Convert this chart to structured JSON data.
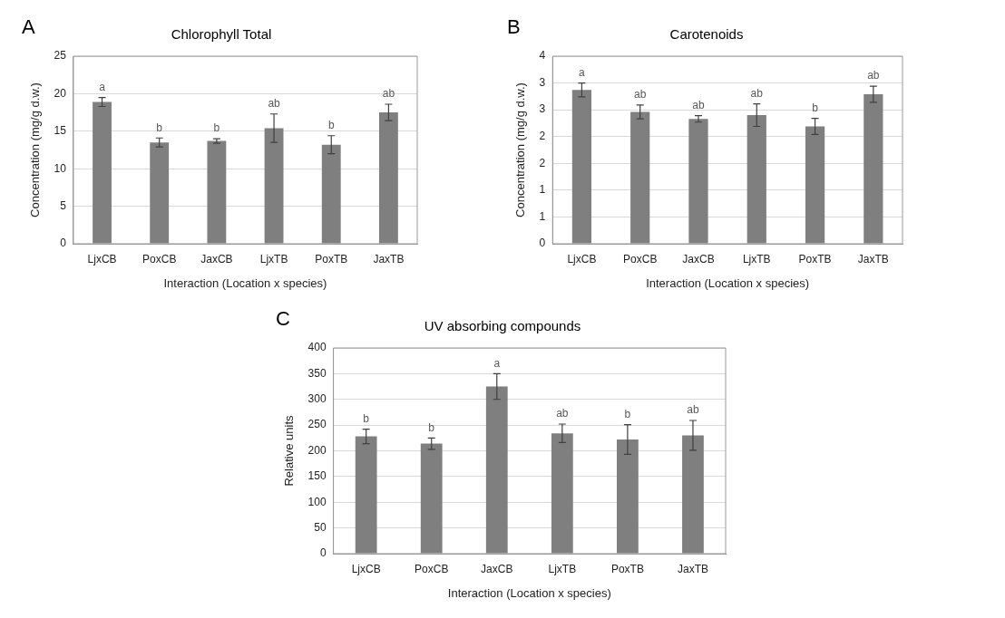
{
  "chart_data": [
    {
      "type": "bar",
      "title": "Chlorophyll Total",
      "xlabel": "Interaction (Location x species)",
      "ylabel": "Concentration (mg/g d.w.)",
      "categories": [
        "LjxCB",
        "PoxCB",
        "JaxCB",
        "LjxTB",
        "PoxTB",
        "JaxTB"
      ],
      "values": [
        18.9,
        13.5,
        13.7,
        15.4,
        13.2,
        17.5
      ],
      "errors": [
        0.6,
        0.6,
        0.3,
        1.9,
        1.2,
        1.1
      ],
      "color": "#7f7f7f",
      "ylim": [
        0,
        25
      ],
      "yticks": [
        0,
        5,
        10,
        15,
        20,
        25
      ],
      "grid": "y",
      "annotations": [
        "A",
        {
          "text": "a",
          "x": "LjxCB",
          "y": 19.5
        },
        {
          "text": "b",
          "x": "PoxCB",
          "y": 14.1
        },
        {
          "text": "b",
          "x": "JaxCB",
          "y": 14.0
        },
        {
          "text": "ab",
          "x": "LjxTB",
          "y": 17.3
        },
        {
          "text": "b",
          "x": "PoxTB",
          "y": 14.4
        },
        {
          "text": "ab",
          "x": "JaxTB",
          "y": 18.6
        }
      ]
    },
    {
      "type": "bar",
      "title": "Carotenoids",
      "xlabel": "Interaction (Location x species)",
      "ylabel": "Concentration (mg/g d.w.)",
      "categories": [
        "LjxCB",
        "PoxCB",
        "JaxCB",
        "LjxTB",
        "PoxTB",
        "JaxTB"
      ],
      "values": [
        2.87,
        2.46,
        2.33,
        2.4,
        2.19,
        2.79
      ],
      "errors": [
        0.13,
        0.13,
        0.06,
        0.21,
        0.15,
        0.15
      ],
      "color": "#7f7f7f",
      "ylim": [
        0,
        3.5
      ],
      "yticks": [
        0,
        {
          "value": 0.5,
          "label": "1"
        },
        1,
        {
          "value": 1.5,
          "label": "2"
        },
        2,
        {
          "value": 2.5,
          "label": "3"
        },
        3,
        {
          "value": 3.5,
          "label": "4"
        }
      ],
      "grid": "y",
      "annotations": [
        "B",
        {
          "text": "a",
          "x": "LjxCB",
          "y": 3.0
        },
        {
          "text": "ab",
          "x": "PoxCB",
          "y": 2.59
        },
        {
          "text": "ab",
          "x": "JaxCB",
          "y": 2.39
        },
        {
          "text": "ab",
          "x": "LjxTB",
          "y": 2.61
        },
        {
          "text": "b",
          "x": "PoxTB",
          "y": 2.34
        },
        {
          "text": "ab",
          "x": "JaxTB",
          "y": 2.94
        }
      ]
    },
    {
      "type": "bar",
      "title": "UV absorbing compounds",
      "xlabel": "Interaction (Location x species)",
      "ylabel": "Relative units",
      "categories": [
        "LjxCB",
        "PoxCB",
        "JaxCB",
        "LjxTB",
        "PoxTB",
        "JaxTB"
      ],
      "values": [
        228,
        214,
        325,
        234,
        222,
        230
      ],
      "errors": [
        14,
        11,
        25,
        18,
        29,
        29
      ],
      "color": "#7f7f7f",
      "ylim": [
        0,
        400
      ],
      "yticks": [
        0,
        50,
        100,
        150,
        200,
        250,
        300,
        350,
        400
      ],
      "grid": "y",
      "annotations": [
        "C",
        {
          "text": "b",
          "x": "LjxCB",
          "y": 242
        },
        {
          "text": "b",
          "x": "PoxCB",
          "y": 225
        },
        {
          "text": "a",
          "x": "JaxCB",
          "y": 350
        },
        {
          "text": "ab",
          "x": "LjxTB",
          "y": 252
        },
        {
          "text": "b",
          "x": "PoxTB",
          "y": 251
        },
        {
          "text": "ab",
          "x": "JaxTB",
          "y": 259
        }
      ]
    }
  ]
}
